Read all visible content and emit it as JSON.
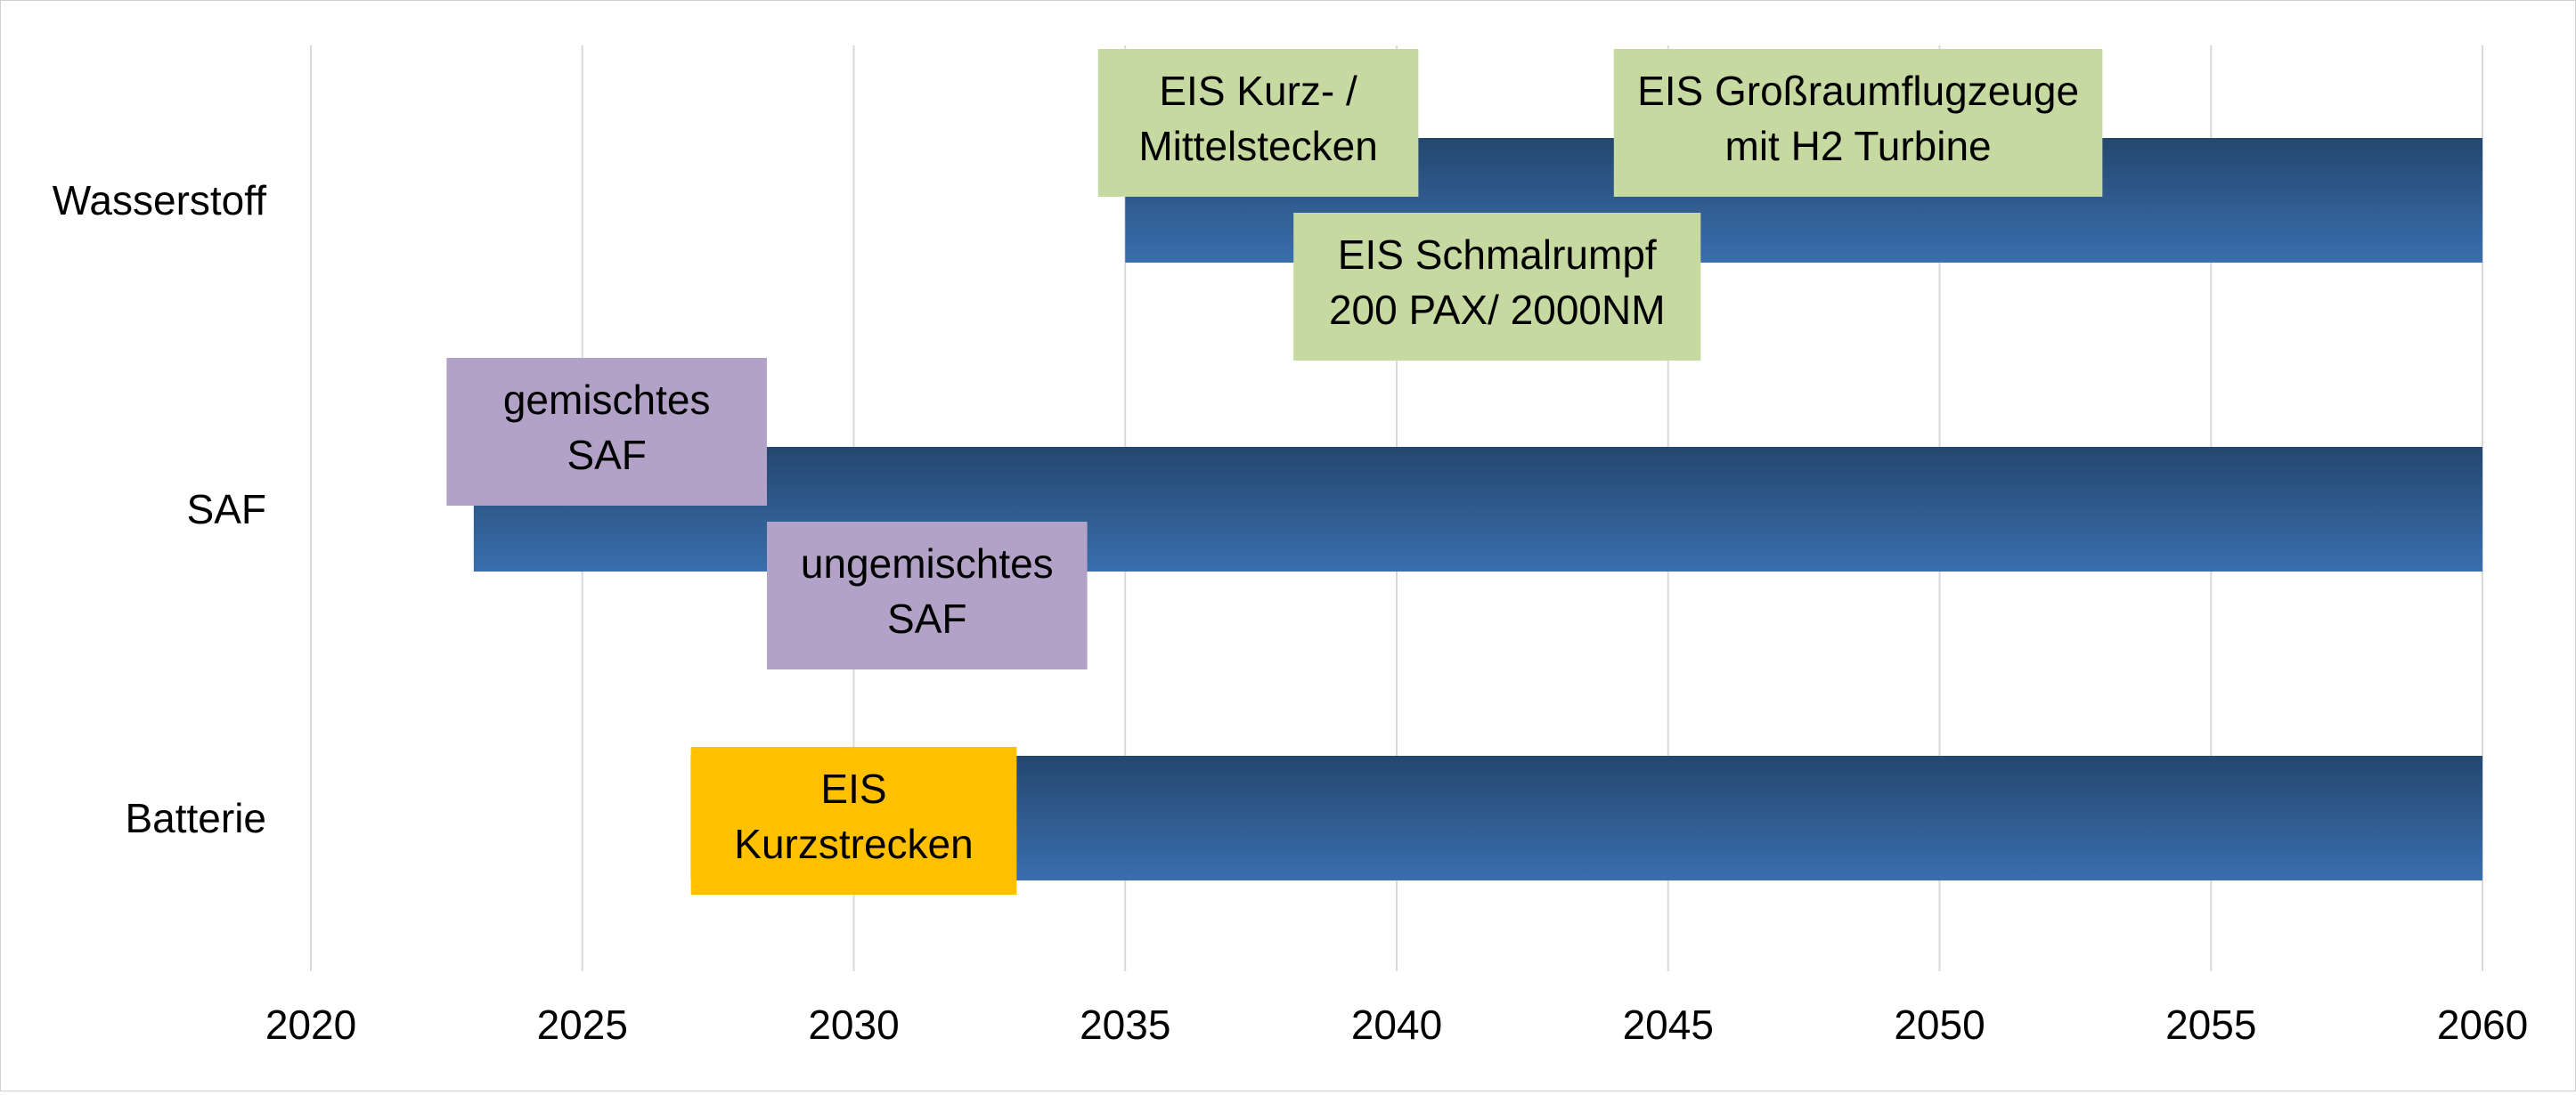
{
  "chart_data": {
    "type": "bar",
    "orientation": "horizontal",
    "categories": [
      "Wasserstoff",
      "SAF",
      "Batterie"
    ],
    "series": [
      {
        "color": "#2e5c92",
        "ranges": [
          {
            "category": "Wasserstoff",
            "start": 2035,
            "end": 2060
          },
          {
            "category": "SAF",
            "start": 2023,
            "end": 2060
          },
          {
            "category": "Batterie",
            "start": 2027,
            "end": 2060
          }
        ]
      }
    ],
    "xlim": [
      2020,
      2060
    ],
    "xticks": [
      "2020",
      "2025",
      "2030",
      "2035",
      "2040",
      "2045",
      "2050",
      "2055",
      "2060"
    ],
    "grid": true,
    "legend": "none",
    "annotations": [
      {
        "category": "Wasserstoff",
        "lines": [
          "EIS Kurz- /",
          "Mittelstecken"
        ],
        "start": 2034.5,
        "end": 2040.4,
        "offset": "above",
        "color": "#c5d9a0"
      },
      {
        "category": "Wasserstoff",
        "lines": [
          "EIS Großraumflugzeuge",
          "mit H2 Turbine"
        ],
        "start": 2044.0,
        "end": 2053.0,
        "offset": "above",
        "color": "#c5d9a0"
      },
      {
        "category": "Wasserstoff",
        "lines": [
          "EIS Schmalrumpf",
          "200 PAX/ 2000NM"
        ],
        "start": 2038.1,
        "end": 2045.6,
        "offset": "below",
        "color": "#c5d9a0"
      },
      {
        "category": "SAF",
        "lines": [
          "gemischtes",
          "SAF"
        ],
        "start": 2022.5,
        "end": 2028.4,
        "offset": "above",
        "color": "#b3a2c7"
      },
      {
        "category": "SAF",
        "lines": [
          "ungemischtes",
          "SAF"
        ],
        "start": 2028.4,
        "end": 2034.3,
        "offset": "below",
        "color": "#b3a2c7"
      },
      {
        "category": "Batterie",
        "lines": [
          "EIS",
          "Kurzstrecken"
        ],
        "start": 2027.0,
        "end": 2033.0,
        "offset": "center",
        "color": "#ffc000"
      }
    ]
  }
}
